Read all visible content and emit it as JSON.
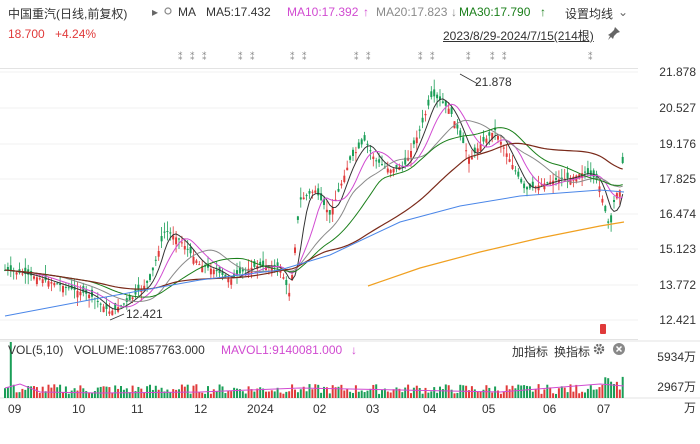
{
  "header": {
    "title": "中国重汽(日线,前复权)",
    "expand_icon": "▸",
    "ma_label": "MA",
    "ma5": "MA5:17.432",
    "ma10": "MA10:17.392",
    "ma10_arrow": "↑",
    "ma20": "MA20:17.823",
    "ma20_arrow": "↓",
    "ma30": "MA30:17.790",
    "ma30_arrow": "↑",
    "settings": "设置均线",
    "settings_chevron": "⌄"
  },
  "quote": {
    "price": "18.700",
    "change": "+4.24%",
    "range": "2023/8/29-2024/7/15(214根)",
    "pin_icon": "pin-icon"
  },
  "price_axis": [
    "21.878",
    "20.527",
    "19.176",
    "17.825",
    "16.474",
    "15.123",
    "13.772",
    "12.421"
  ],
  "annotations": {
    "high": "21.878",
    "low": "12.421"
  },
  "volume": {
    "label": "VOL(5,10)",
    "volume": "VOLUME:10857763.000",
    "mavol": "MAVOL1:9140081.000",
    "arrow": "↓",
    "add_indicator": "加指标",
    "switch_indicator": "换指标",
    "axis": [
      "5934万",
      "2967万",
      "万"
    ]
  },
  "time_axis": [
    "09",
    "10",
    "11",
    "12",
    "2024",
    "02",
    "03",
    "04",
    "05",
    "06",
    "07"
  ],
  "colors": {
    "up": "#e03a3a",
    "down": "#1a9e57",
    "ma5": "#333333",
    "ma10": "#d14bd1",
    "ma20": "#8a8a8a",
    "ma30": "#1a7f1a",
    "ma60": "#7a2a1a",
    "ma120": "#4a86e8",
    "ma250": "#f0a020"
  }
}
